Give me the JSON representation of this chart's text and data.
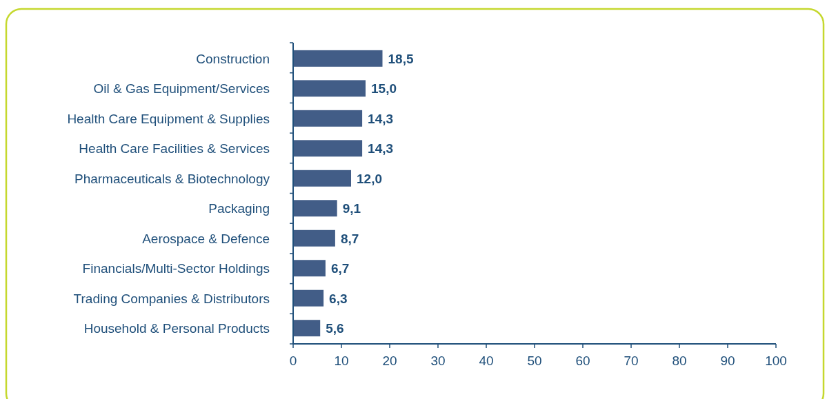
{
  "chart_data": {
    "type": "bar",
    "orientation": "horizontal",
    "categories": [
      "Construction",
      "Oil & Gas Equipment/Services",
      "Health Care Equipment & Supplies",
      "Health Care Facilities & Services",
      "Pharmaceuticals & Biotechnology",
      "Packaging",
      "Aerospace & Defence",
      "Financials/Multi-Sector Holdings",
      "Trading Companies & Distributors",
      "Household & Personal Products"
    ],
    "values": [
      18.5,
      15.0,
      14.3,
      14.3,
      12.0,
      9.1,
      8.7,
      6.7,
      6.3,
      5.6
    ],
    "value_labels": [
      "18,5",
      "15,0",
      "14,3",
      "14,3",
      "12,0",
      "9,1",
      "8,7",
      "6,7",
      "6,3",
      "5,6"
    ],
    "color": "#425d87",
    "xlim": [
      0,
      100
    ],
    "xticks": [
      0,
      10,
      20,
      30,
      40,
      50,
      60,
      70,
      80,
      90,
      100
    ],
    "grid": false
  }
}
